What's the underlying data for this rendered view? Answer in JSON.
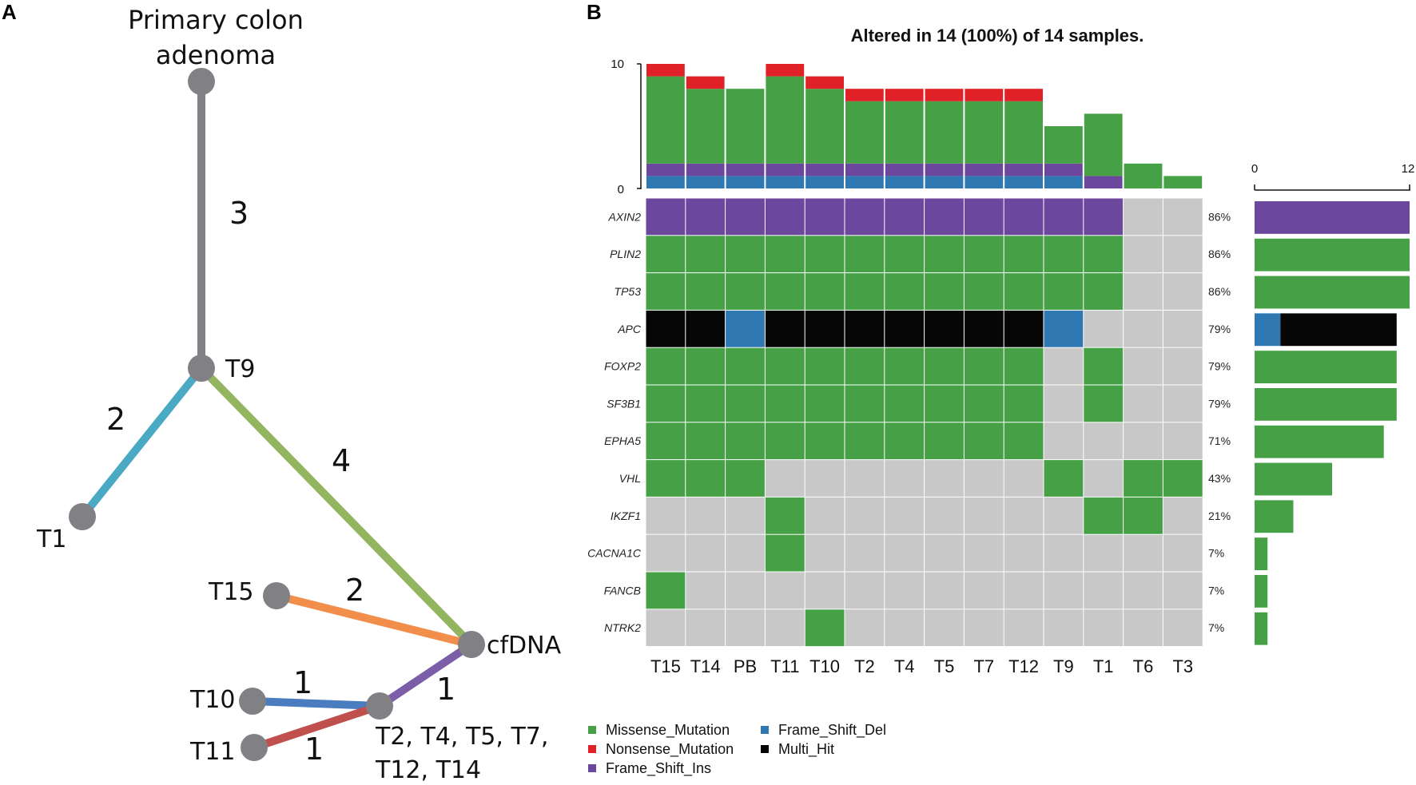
{
  "panel_a": {
    "label": "A",
    "root_label_line1": "Primary colon",
    "root_label_line2": "adenoma",
    "nodes": {
      "t9": "T9",
      "t1": "T1",
      "cfdna": "cfDNA",
      "t15": "T15",
      "t10": "T10",
      "t11": "T11",
      "group_line1": "T2, T4, T5, T7,",
      "group_line2": "T12, T14"
    },
    "edges": [
      {
        "name": "edge-root-t9",
        "weight": "3",
        "color": "#808085"
      },
      {
        "name": "edge-t9-t1",
        "weight": "2",
        "color": "#4aa9c3"
      },
      {
        "name": "edge-t9-cfdna",
        "weight": "4",
        "color": "#93b560"
      },
      {
        "name": "edge-cfdna-t15",
        "weight": "2",
        "color": "#f28e4c"
      },
      {
        "name": "edge-cfdna-group",
        "weight": "1",
        "color": "#7b5ea7"
      },
      {
        "name": "edge-group-t10",
        "weight": "1",
        "color": "#4a7dc0"
      },
      {
        "name": "edge-group-t11",
        "weight": "1",
        "color": "#c0504d"
      }
    ],
    "node_color": "#808085"
  },
  "panel_b": {
    "label": "B"
  },
  "chart_data": {
    "type": "heatmap",
    "title": "Altered in 14 (100%) of 14 samples.",
    "samples": [
      "T15",
      "T14",
      "PB",
      "T11",
      "T10",
      "T2",
      "T4",
      "T5",
      "T7",
      "T12",
      "T9",
      "T1",
      "T6",
      "T3"
    ],
    "genes": [
      "AXIN2",
      "PLIN2",
      "TP53",
      "APC",
      "FOXP2",
      "SF3B1",
      "EPHA5",
      "VHL",
      "IKZF1",
      "CACNA1C",
      "FANCB",
      "NTRK2"
    ],
    "percentages": [
      "86%",
      "86%",
      "86%",
      "79%",
      "79%",
      "79%",
      "71%",
      "43%",
      "21%",
      "7%",
      "7%",
      "7%"
    ],
    "matrix_codes": {
      "0": "none",
      "1": "Missense_Mutation",
      "2": "Nonsense_Mutation",
      "3": "Frame_Shift_Ins",
      "4": "Frame_Shift_Del",
      "5": "Multi_Hit"
    },
    "matrix": [
      [
        3,
        3,
        3,
        3,
        3,
        3,
        3,
        3,
        3,
        3,
        3,
        3,
        0,
        0
      ],
      [
        1,
        1,
        1,
        1,
        1,
        1,
        1,
        1,
        1,
        1,
        1,
        1,
        0,
        0
      ],
      [
        1,
        1,
        1,
        1,
        1,
        1,
        1,
        1,
        1,
        1,
        1,
        1,
        0,
        0
      ],
      [
        5,
        5,
        4,
        5,
        5,
        5,
        5,
        5,
        5,
        5,
        4,
        0,
        0,
        0
      ],
      [
        1,
        1,
        1,
        1,
        1,
        1,
        1,
        1,
        1,
        1,
        0,
        1,
        0,
        0
      ],
      [
        1,
        1,
        1,
        1,
        1,
        1,
        1,
        1,
        1,
        1,
        0,
        1,
        0,
        0
      ],
      [
        1,
        1,
        1,
        1,
        1,
        1,
        1,
        1,
        1,
        1,
        0,
        0,
        0,
        0
      ],
      [
        1,
        1,
        1,
        0,
        0,
        0,
        0,
        0,
        0,
        0,
        1,
        0,
        1,
        1
      ],
      [
        0,
        0,
        0,
        1,
        0,
        0,
        0,
        0,
        0,
        0,
        0,
        1,
        1,
        0
      ],
      [
        0,
        0,
        0,
        1,
        0,
        0,
        0,
        0,
        0,
        0,
        0,
        0,
        0,
        0
      ],
      [
        1,
        0,
        0,
        0,
        0,
        0,
        0,
        0,
        0,
        0,
        0,
        0,
        0,
        0
      ],
      [
        0,
        0,
        0,
        0,
        1,
        0,
        0,
        0,
        0,
        0,
        0,
        0,
        0,
        0
      ]
    ],
    "top_bar": {
      "ylim": [
        0,
        10
      ],
      "ticks": [
        "0",
        "10"
      ],
      "stack_order": [
        "Frame_Shift_Del",
        "Frame_Shift_Ins",
        "Missense_Mutation",
        "Nonsense_Mutation"
      ],
      "series": [
        {
          "name": "Frame_Shift_Del",
          "values": [
            1,
            1,
            1,
            1,
            1,
            1,
            1,
            1,
            1,
            1,
            1,
            0,
            0,
            0
          ]
        },
        {
          "name": "Frame_Shift_Ins",
          "values": [
            1,
            1,
            1,
            1,
            1,
            1,
            1,
            1,
            1,
            1,
            1,
            1,
            0,
            0
          ]
        },
        {
          "name": "Missense_Mutation",
          "values": [
            7,
            6,
            6,
            7,
            6,
            5,
            5,
            5,
            5,
            5,
            3,
            5,
            2,
            1
          ]
        },
        {
          "name": "Nonsense_Mutation",
          "values": [
            1,
            1,
            0,
            1,
            1,
            1,
            1,
            1,
            1,
            1,
            0,
            0,
            0,
            0
          ]
        }
      ]
    },
    "side_bar": {
      "xlim": [
        0,
        12
      ],
      "ticks": [
        "0",
        "12"
      ],
      "stack_order": [
        "Frame_Shift_Del",
        "Frame_Shift_Ins",
        "Missense_Mutation",
        "Multi_Hit"
      ],
      "series": [
        {
          "name": "Frame_Shift_Del",
          "values": [
            0,
            0,
            0,
            2,
            0,
            0,
            0,
            0,
            0,
            0,
            0,
            0
          ]
        },
        {
          "name": "Frame_Shift_Ins",
          "values": [
            12,
            0,
            0,
            0,
            0,
            0,
            0,
            0,
            0,
            0,
            0,
            0
          ]
        },
        {
          "name": "Missense_Mutation",
          "values": [
            0,
            12,
            12,
            0,
            11,
            11,
            10,
            6,
            3,
            1,
            1,
            1
          ]
        },
        {
          "name": "Multi_Hit",
          "values": [
            0,
            0,
            0,
            9,
            0,
            0,
            0,
            0,
            0,
            0,
            0,
            0
          ]
        }
      ]
    },
    "legend": [
      {
        "label": "Missense_Mutation",
        "key": "Missense_Mutation"
      },
      {
        "label": "Nonsense_Mutation",
        "key": "Nonsense_Mutation"
      },
      {
        "label": "Frame_Shift_Ins",
        "key": "Frame_Shift_Ins"
      },
      {
        "label": "Frame_Shift_Del",
        "key": "Frame_Shift_Del"
      },
      {
        "label": "Multi_Hit",
        "key": "Multi_Hit"
      }
    ],
    "colors": {
      "none": "#c8c8c8",
      "Missense_Mutation": "#46a046",
      "Nonsense_Mutation": "#e02228",
      "Frame_Shift_Ins": "#6b479e",
      "Frame_Shift_Del": "#2f78b2",
      "Multi_Hit": "#060606"
    }
  }
}
